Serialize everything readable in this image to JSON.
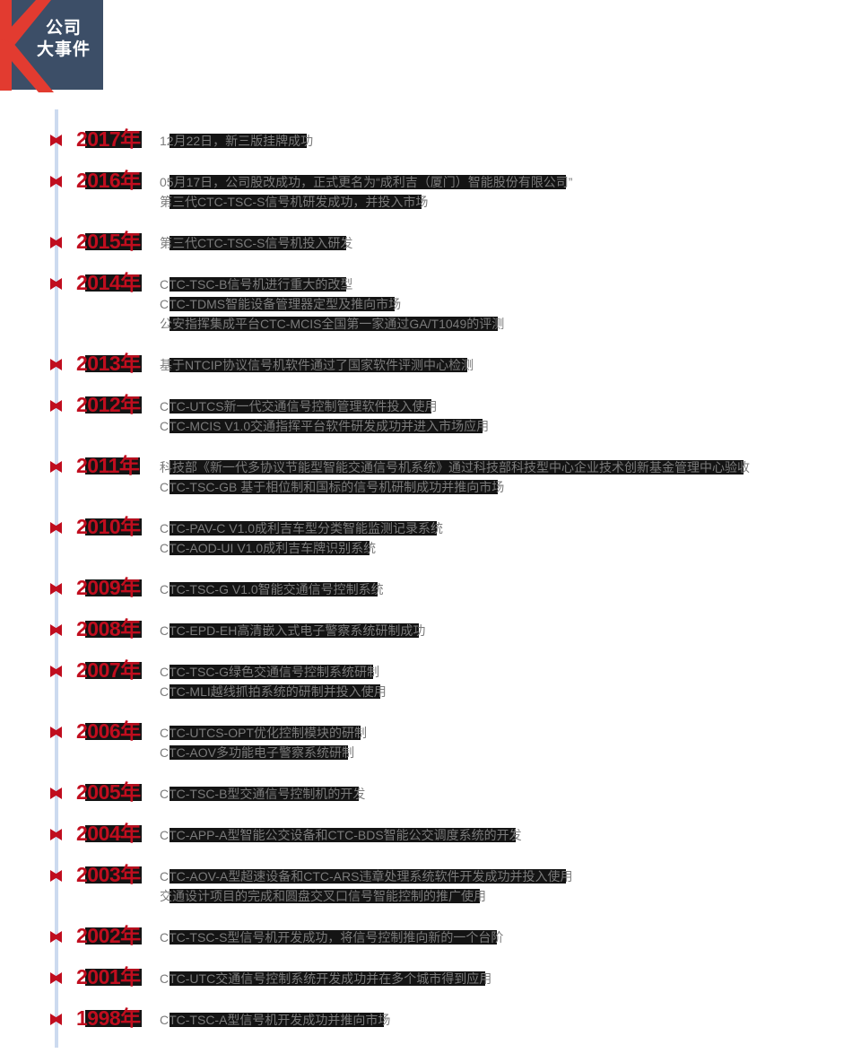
{
  "logo": {
    "line1": "公司",
    "line2": "大事件",
    "bg_color": "#3c4e67",
    "k_color": "#e23b30",
    "text_color": "#ffffff"
  },
  "timeline": {
    "line_color": "#ccdaef",
    "accent_color": "#c00d1e",
    "highlight_color": "#141414",
    "text_color": "#7b7b7b",
    "events": [
      {
        "year": "2017年",
        "lines": [
          "12月22日，新三版挂牌成功"
        ]
      },
      {
        "year": "2016年",
        "lines": [
          "05月17日，公司股改成功，正式更名为“成利吉（厦门）智能股份有限公司”",
          "第三代CTC-TSC-S信号机研发成功，并投入市场"
        ]
      },
      {
        "year": "2015年",
        "lines": [
          "第三代CTC-TSC-S信号机投入研发"
        ]
      },
      {
        "year": "2014年",
        "lines": [
          "CTC-TSC-B信号机进行重大的改型",
          "CTC-TDMS智能设备管理器定型及推向市场",
          "公安指挥集成平台CTC-MCIS全国第一家通过GA/T1049的评测"
        ]
      },
      {
        "year": "2013年",
        "lines": [
          "基于NTCIP协议信号机软件通过了国家软件评测中心检测"
        ]
      },
      {
        "year": "2012年",
        "lines": [
          "CTC-UTCS新一代交通信号控制管理软件投入使用",
          "CTC-MCIS V1.0交通指挥平台软件研发成功并进入市场应用"
        ]
      },
      {
        "year": "2011年",
        "lines": [
          "科技部《新一代多协议节能型智能交通信号机系统》通过科技部科技型中心企业技术创新基金管理中心验收",
          "CTC-TSC-GB 基于相位制和国标的信号机研制成功并推向市场"
        ]
      },
      {
        "year": "2010年",
        "lines": [
          "CTC-PAV-C V1.0成利吉车型分类智能监测记录系统",
          "CTC-AOD-UI V1.0成利吉车牌识别系统"
        ]
      },
      {
        "year": "2009年",
        "lines": [
          "CTC-TSC-G V1.0智能交通信号控制系统"
        ]
      },
      {
        "year": "2008年",
        "lines": [
          "CTC-EPD-EH高清嵌入式电子警察系统研制成功"
        ]
      },
      {
        "year": "2007年",
        "lines": [
          "CTC-TSC-G绿色交通信号控制系统研制",
          "CTC-MLI越线抓拍系统的研制并投入使用"
        ]
      },
      {
        "year": "2006年",
        "lines": [
          "CTC-UTCS-OPT优化控制模块的研制",
          "CTC-AOV多功能电子警察系统研制"
        ]
      },
      {
        "year": "2005年",
        "lines": [
          "CTC-TSC-B型交通信号控制机的开发"
        ]
      },
      {
        "year": "2004年",
        "lines": [
          "CTC-APP-A型智能公交设备和CTC-BDS智能公交调度系统的开发"
        ]
      },
      {
        "year": "2003年",
        "lines": [
          "CTC-AOV-A型超速设备和CTC-ARS违章处理系统软件开发成功并投入使用",
          "交通设计项目的完成和圆盘交叉口信号智能控制的推广使用"
        ]
      },
      {
        "year": "2002年",
        "lines": [
          "CTC-TSC-S型信号机开发成功，将信号控制推向新的一个台阶"
        ]
      },
      {
        "year": "2001年",
        "lines": [
          "CTC-UTC交通信号控制系统开发成功并在多个城市得到应用"
        ]
      },
      {
        "year": "1998年",
        "lines": [
          "CTC-TSC-A型信号机开发成功并推向市场"
        ]
      }
    ]
  }
}
